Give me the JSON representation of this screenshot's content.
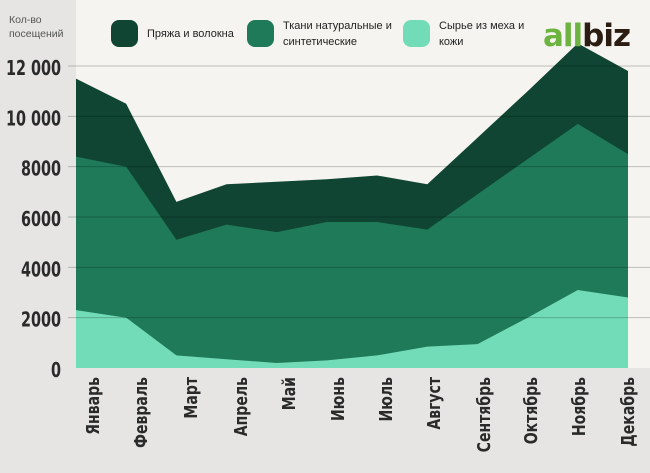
{
  "y_axis_title": "Кол-во посещений",
  "logo": {
    "part1": "all",
    "part2": "biz"
  },
  "colors": {
    "yarn": "#0f4532",
    "fabrics": "#1f7a5a",
    "raw": "#72dbb7",
    "grid": "#b9b9b6",
    "logo_green": "#6cb33f",
    "logo_dark": "#2b1d12"
  },
  "chart_data": {
    "type": "area",
    "stacked": true,
    "title": "",
    "xlabel": "",
    "ylabel": "Кол-во посещений",
    "ylim": [
      0,
      12000
    ],
    "grid": true,
    "legend_position": "top",
    "categories": [
      "Январь",
      "Февраль",
      "Март",
      "Апрель",
      "Май",
      "Июнь",
      "Июль",
      "Август",
      "Сентябрь",
      "Октябрь",
      "Ноябрь",
      "Декабрь"
    ],
    "yticks": [
      0,
      2000,
      4000,
      6000,
      8000,
      10000,
      12000
    ],
    "ytick_labels": [
      "0",
      "2000",
      "4000",
      "6000",
      "8000",
      "10 000",
      "12 000"
    ],
    "series": [
      {
        "name": "Сырье из меха и кожи",
        "color": "#72dbb7",
        "values": [
          2300,
          2000,
          500,
          350,
          200,
          300,
          500,
          850,
          950,
          2000,
          3100,
          2800
        ]
      },
      {
        "name": "Ткани натуральные и синтетические",
        "color": "#1f7a5a",
        "values": [
          6100,
          6000,
          4600,
          5350,
          5200,
          5500,
          5300,
          4650,
          5950,
          6300,
          6600,
          5700
        ]
      },
      {
        "name": "Пряжа и волокна",
        "color": "#0f4532",
        "values": [
          3100,
          2500,
          1500,
          1600,
          2000,
          1700,
          1850,
          1800,
          2250,
          2700,
          3200,
          3300
        ]
      }
    ]
  }
}
